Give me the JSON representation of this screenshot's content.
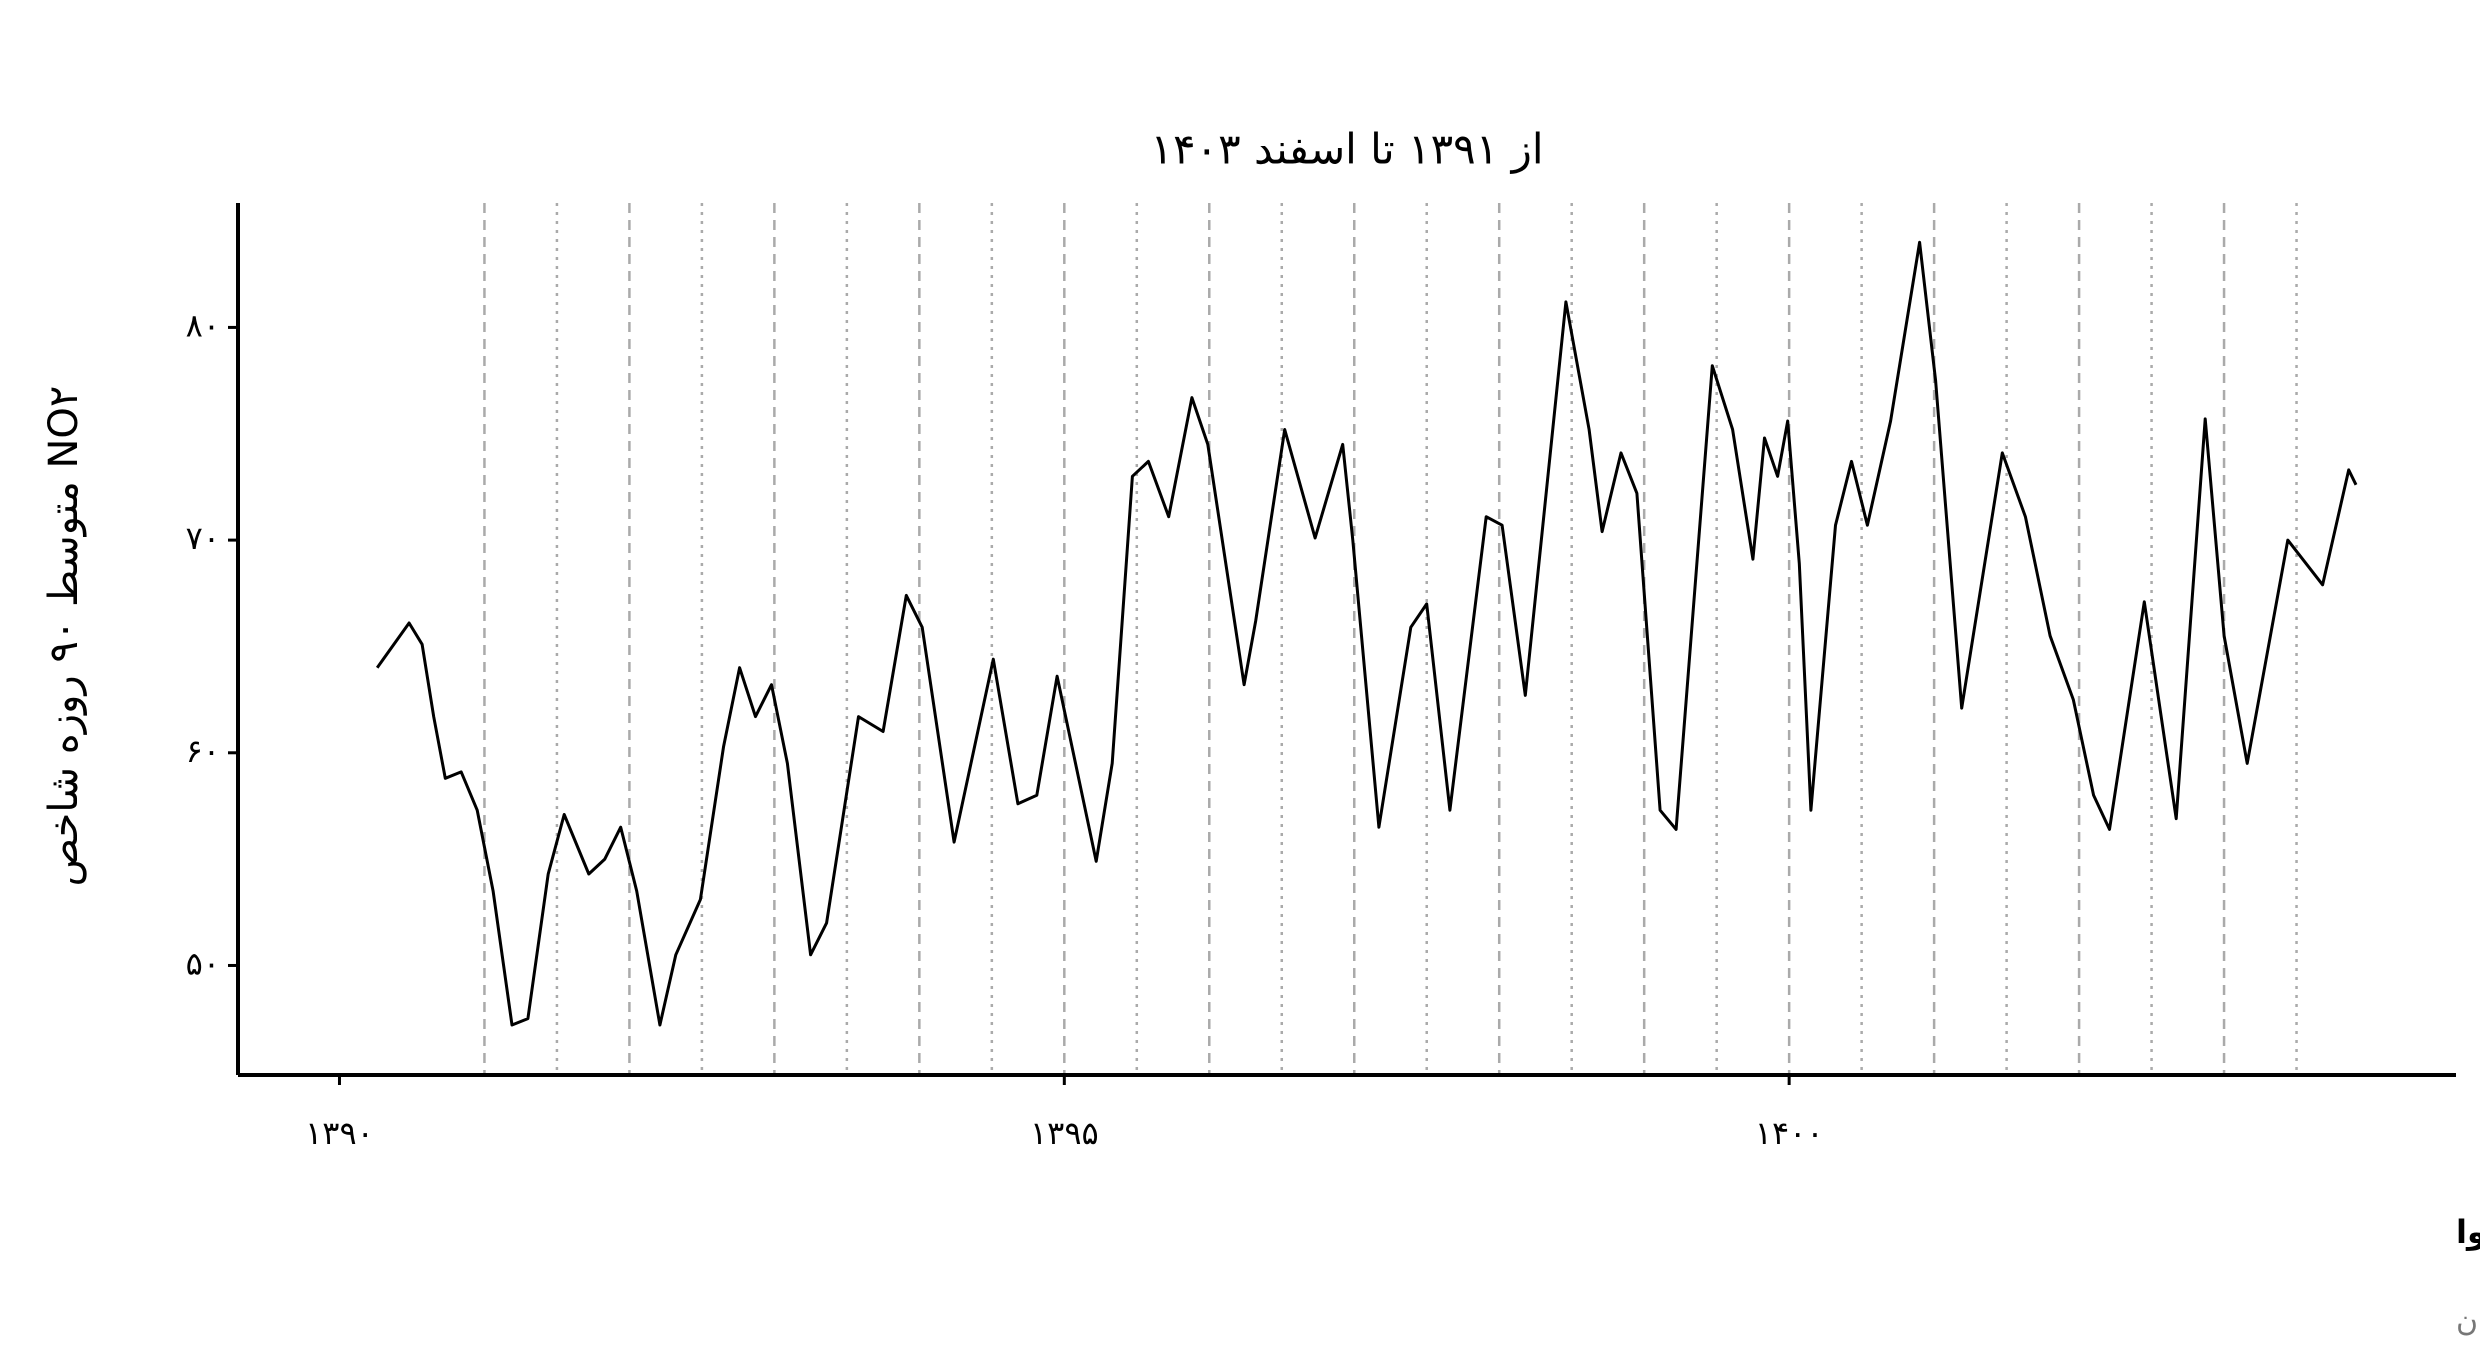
{
  "chart_data": {
    "type": "line",
    "title": "از ۱۳۹۱ تا اسفند ۱۴۰۳",
    "y_label": "متوسط ۹۰ روزه شاخص NO۲",
    "caption": "روند تغییرات شاخص دی‌اکسید نیتروژن در هوا",
    "source": "منبع داده: شرکت کنترل کیفیت هوای تهران",
    "xlim": [
      1389.3,
      1404.6
    ],
    "ylim": [
      44.85,
      85.85
    ],
    "xticks": [
      {
        "value": 1390,
        "label": "۱۳۹۰"
      },
      {
        "value": 1395,
        "label": "۱۳۹۵"
      },
      {
        "value": 1400,
        "label": "۱۴۰۰"
      }
    ],
    "yticks": [
      {
        "value": 50,
        "label": "۵۰"
      },
      {
        "value": 60,
        "label": "۶۰"
      },
      {
        "value": 70,
        "label": "۷۰"
      },
      {
        "value": 80,
        "label": "۸۰"
      }
    ],
    "year_lines": [
      1391,
      1392,
      1393,
      1394,
      1395,
      1396,
      1397,
      1398,
      1399,
      1400,
      1401,
      1402,
      1403
    ],
    "half_year_lines": [
      1391.5,
      1392.5,
      1393.5,
      1394.5,
      1395.5,
      1396.5,
      1397.5,
      1398.5,
      1399.5,
      1400.5,
      1401.5,
      1402.5,
      1403.5
    ],
    "x": [
      1390.26,
      1390.48,
      1390.57,
      1390.65,
      1390.73,
      1390.84,
      1390.95,
      1391.06,
      1391.19,
      1391.3,
      1391.44,
      1391.55,
      1391.72,
      1391.83,
      1391.94,
      1392.05,
      1392.21,
      1392.32,
      1392.49,
      1392.65,
      1392.76,
      1392.87,
      1392.98,
      1393.09,
      1393.25,
      1393.36,
      1393.58,
      1393.75,
      1393.91,
      1394.02,
      1394.24,
      1394.51,
      1394.68,
      1394.81,
      1394.95,
      1395.22,
      1395.33,
      1395.47,
      1395.58,
      1395.72,
      1395.88,
      1395.99,
      1396.24,
      1396.32,
      1396.52,
      1396.73,
      1396.92,
      1396.99,
      1397.17,
      1397.39,
      1397.5,
      1397.66,
      1397.91,
      1398.02,
      1398.18,
      1398.46,
      1398.62,
      1398.71,
      1398.84,
      1398.95,
      1399.11,
      1399.22,
      1399.47,
      1399.61,
      1399.75,
      1399.83,
      1399.92,
      1399.99,
      1400.07,
      1400.15,
      1400.32,
      1400.43,
      1400.54,
      1400.7,
      1400.9,
      1401.01,
      1401.19,
      1401.47,
      1401.63,
      1401.8,
      1401.96,
      1402.1,
      1402.21,
      1402.45,
      1402.67,
      1402.87,
      1403.0,
      1403.16,
      1403.44,
      1403.68,
      1403.86,
      1403.91
    ],
    "series": [
      {
        "color": "#000000",
        "values": [
          64.0,
          66.1,
          65.1,
          61.7,
          58.8,
          59.1,
          57.3,
          53.5,
          47.2,
          47.5,
          54.3,
          57.1,
          54.3,
          55.0,
          56.5,
          53.5,
          47.2,
          50.5,
          53.1,
          60.3,
          64.0,
          61.7,
          63.2,
          59.5,
          50.5,
          52.0,
          61.7,
          61.0,
          67.4,
          65.9,
          55.8,
          64.4,
          57.6,
          58.0,
          63.6,
          54.9,
          59.5,
          73.0,
          73.7,
          71.1,
          76.7,
          74.5,
          63.2,
          66.2,
          75.2,
          70.1,
          74.5,
          70.0,
          56.5,
          65.9,
          67.0,
          57.3,
          71.1,
          70.7,
          62.7,
          81.2,
          75.2,
          70.4,
          74.1,
          72.2,
          57.3,
          56.4,
          78.2,
          75.2,
          69.1,
          74.8,
          73.0,
          75.6,
          68.9,
          57.3,
          70.7,
          73.7,
          70.7,
          75.6,
          84.0,
          77.5,
          62.1,
          74.1,
          71.1,
          65.5,
          62.5,
          58.0,
          56.4,
          67.1,
          56.9,
          75.7,
          65.5,
          59.5,
          70.0,
          67.9,
          73.3,
          72.6
        ]
      }
    ]
  }
}
